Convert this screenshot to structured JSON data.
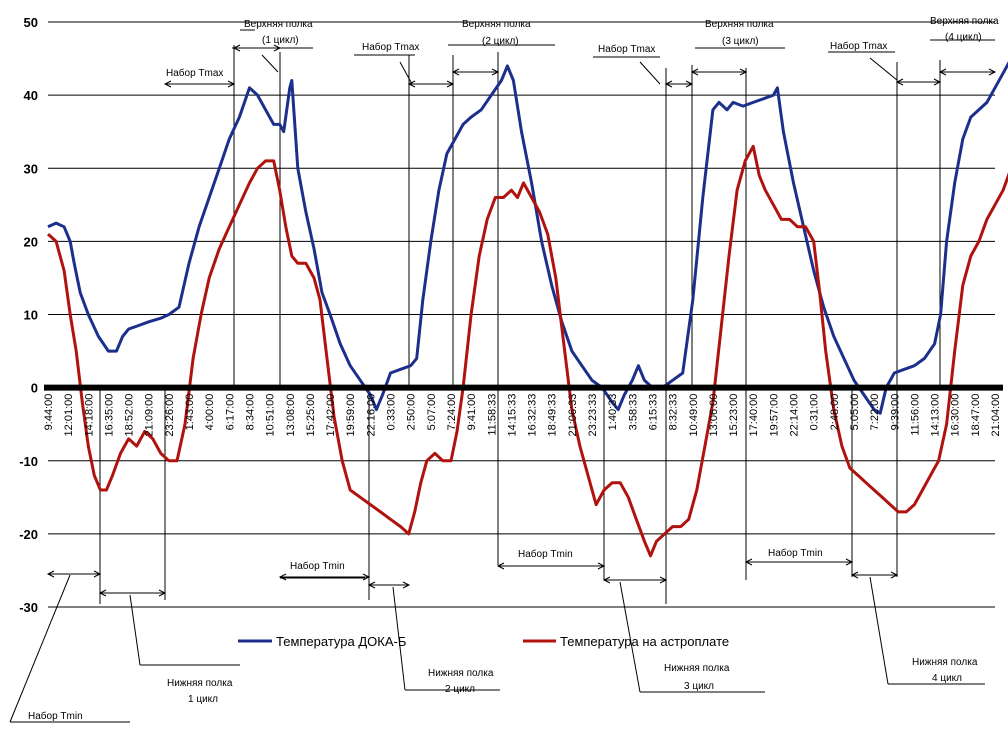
{
  "chart_data": {
    "type": "line",
    "title": "",
    "xlabel": "",
    "ylabel": "",
    "ylim": [
      -30,
      50
    ],
    "yticks": [
      50,
      40,
      30,
      20,
      10,
      0,
      -10,
      -20,
      -30
    ],
    "grid": true,
    "legend_position": "bottom",
    "categories": [
      "9:44:00",
      "12:01:00",
      "14:18:00",
      "16:35:00",
      "18:52:00",
      "21:09:00",
      "23:26:00",
      "1:43:00",
      "4:00:00",
      "6:17:00",
      "8:34:00",
      "10:51:00",
      "13:08:00",
      "15:25:00",
      "17:42:00",
      "19:59:00",
      "22:16:00",
      "0:33:00",
      "2:50:00",
      "5:07:00",
      "7:24:00",
      "9:41:00",
      "11:58:33",
      "14:15:33",
      "16:32:33",
      "18:49:33",
      "21:06:33",
      "23:23:33",
      "1:40:33",
      "3:58:33",
      "6:15:33",
      "8:32:33",
      "10:49:00",
      "13:06:00",
      "15:23:00",
      "17:40:00",
      "19:57:00",
      "22:14:00",
      "0:31:00",
      "2:48:00",
      "5:05:00",
      "7:22:00",
      "9:39:00",
      "11:56:00",
      "14:13:00",
      "16:30:00",
      "18:47:00",
      "21:04:00"
    ],
    "series": [
      {
        "name": "Температура ДОКА-Б",
        "color": "#1c2f8c",
        "points": [
          [
            0,
            22
          ],
          [
            0.4,
            22.5
          ],
          [
            0.8,
            22
          ],
          [
            1.1,
            20
          ],
          [
            1.3,
            17
          ],
          [
            1.6,
            13
          ],
          [
            2,
            10
          ],
          [
            2.5,
            7
          ],
          [
            3,
            5
          ],
          [
            3.4,
            5
          ],
          [
            3.7,
            7
          ],
          [
            4,
            8
          ],
          [
            4.5,
            8.5
          ],
          [
            5,
            9
          ],
          [
            5.6,
            9.5
          ],
          [
            6,
            10
          ],
          [
            6.5,
            11
          ],
          [
            7,
            17
          ],
          [
            7.5,
            22
          ],
          [
            8,
            26
          ],
          [
            8.5,
            30
          ],
          [
            9,
            34
          ],
          [
            9.5,
            37
          ],
          [
            10,
            41
          ],
          [
            10.4,
            40
          ],
          [
            10.8,
            38
          ],
          [
            11.2,
            36
          ],
          [
            11.5,
            36
          ],
          [
            11.7,
            35
          ],
          [
            12,
            41
          ],
          [
            12.1,
            42
          ],
          [
            12.4,
            30
          ],
          [
            12.8,
            24
          ],
          [
            13.2,
            19
          ],
          [
            13.6,
            13
          ],
          [
            14,
            10
          ],
          [
            14.5,
            6
          ],
          [
            15,
            3
          ],
          [
            15.5,
            1
          ],
          [
            16,
            -1
          ],
          [
            16.3,
            -3
          ],
          [
            16.6,
            -1
          ],
          [
            17,
            2
          ],
          [
            17.5,
            2.5
          ],
          [
            18,
            3
          ],
          [
            18.3,
            4
          ],
          [
            18.6,
            12
          ],
          [
            19,
            20
          ],
          [
            19.4,
            27
          ],
          [
            19.8,
            32
          ],
          [
            20.2,
            34
          ],
          [
            20.6,
            36
          ],
          [
            21,
            37
          ],
          [
            21.5,
            38
          ],
          [
            22,
            40
          ],
          [
            22.5,
            42
          ],
          [
            22.8,
            44
          ],
          [
            23.1,
            42
          ],
          [
            23.5,
            35
          ],
          [
            24,
            28
          ],
          [
            24.5,
            20
          ],
          [
            25,
            14
          ],
          [
            25.5,
            9
          ],
          [
            26,
            5
          ],
          [
            26.5,
            3
          ],
          [
            27,
            1
          ],
          [
            27.5,
            0
          ],
          [
            28,
            -2
          ],
          [
            28.3,
            -3
          ],
          [
            28.6,
            -1
          ],
          [
            29,
            1
          ],
          [
            29.3,
            3
          ],
          [
            29.6,
            1
          ],
          [
            30,
            0
          ],
          [
            30.5,
            0
          ],
          [
            31,
            1
          ],
          [
            31.5,
            2
          ],
          [
            32,
            12
          ],
          [
            32.5,
            26
          ],
          [
            33,
            38
          ],
          [
            33.3,
            39
          ],
          [
            33.7,
            38
          ],
          [
            34,
            39
          ],
          [
            34.5,
            38.5
          ],
          [
            35,
            39
          ],
          [
            35.5,
            39.5
          ],
          [
            36,
            40
          ],
          [
            36.2,
            41
          ],
          [
            36.5,
            35
          ],
          [
            37,
            28
          ],
          [
            37.5,
            22
          ],
          [
            38,
            16
          ],
          [
            38.5,
            11
          ],
          [
            39,
            7
          ],
          [
            39.5,
            4
          ],
          [
            40,
            1
          ],
          [
            40.5,
            -1
          ],
          [
            41,
            -3
          ],
          [
            41.3,
            -3.5
          ],
          [
            41.6,
            0
          ],
          [
            42,
            2
          ],
          [
            42.5,
            2.5
          ],
          [
            43,
            3
          ],
          [
            43.5,
            4
          ],
          [
            44,
            6
          ],
          [
            44.3,
            10
          ],
          [
            44.6,
            20
          ],
          [
            45,
            28
          ],
          [
            45.4,
            34
          ],
          [
            45.8,
            37
          ],
          [
            46.2,
            38
          ],
          [
            46.6,
            39
          ],
          [
            47,
            41
          ],
          [
            47.4,
            43
          ],
          [
            47.8,
            45
          ],
          [
            48.2,
            45
          ],
          [
            48.5,
            44.5
          ]
        ]
      },
      {
        "name": "Температура на астроплате",
        "color": "#b0120e",
        "points": [
          [
            0,
            21
          ],
          [
            0.4,
            20
          ],
          [
            0.8,
            16
          ],
          [
            1.1,
            10
          ],
          [
            1.4,
            5
          ],
          [
            1.7,
            -2
          ],
          [
            2,
            -8
          ],
          [
            2.3,
            -12
          ],
          [
            2.6,
            -14
          ],
          [
            2.9,
            -14
          ],
          [
            3.2,
            -12
          ],
          [
            3.6,
            -9
          ],
          [
            4,
            -7
          ],
          [
            4.4,
            -8
          ],
          [
            4.8,
            -6
          ],
          [
            5.2,
            -7
          ],
          [
            5.6,
            -9
          ],
          [
            6,
            -10
          ],
          [
            6.4,
            -10
          ],
          [
            6.8,
            -5
          ],
          [
            7.2,
            4
          ],
          [
            7.6,
            10
          ],
          [
            8,
            15
          ],
          [
            8.5,
            19
          ],
          [
            9,
            22
          ],
          [
            9.5,
            25
          ],
          [
            10,
            28
          ],
          [
            10.4,
            30
          ],
          [
            10.8,
            31
          ],
          [
            11.2,
            31
          ],
          [
            11.5,
            27
          ],
          [
            11.8,
            22
          ],
          [
            12.1,
            18
          ],
          [
            12.4,
            17
          ],
          [
            12.8,
            17
          ],
          [
            13.2,
            15
          ],
          [
            13.5,
            12
          ],
          [
            13.8,
            5
          ],
          [
            14.2,
            -4
          ],
          [
            14.6,
            -10
          ],
          [
            15,
            -14
          ],
          [
            15.5,
            -15
          ],
          [
            16,
            -16
          ],
          [
            16.5,
            -17
          ],
          [
            17,
            -18
          ],
          [
            17.5,
            -19
          ],
          [
            17.9,
            -20
          ],
          [
            18.2,
            -17
          ],
          [
            18.5,
            -13
          ],
          [
            18.8,
            -10
          ],
          [
            19.2,
            -9
          ],
          [
            19.6,
            -10
          ],
          [
            20,
            -10
          ],
          [
            20.3,
            -6
          ],
          [
            20.6,
            0
          ],
          [
            21,
            10
          ],
          [
            21.4,
            18
          ],
          [
            21.8,
            23
          ],
          [
            22.2,
            26
          ],
          [
            22.6,
            26
          ],
          [
            23,
            27
          ],
          [
            23.3,
            26
          ],
          [
            23.6,
            28
          ],
          [
            24,
            26
          ],
          [
            24.4,
            24
          ],
          [
            24.8,
            21
          ],
          [
            25.2,
            15
          ],
          [
            25.6,
            6
          ],
          [
            26,
            -3
          ],
          [
            26.4,
            -8
          ],
          [
            26.8,
            -12
          ],
          [
            27.2,
            -16
          ],
          [
            27.6,
            -14
          ],
          [
            28,
            -13
          ],
          [
            28.4,
            -13
          ],
          [
            28.8,
            -15
          ],
          [
            29.2,
            -18
          ],
          [
            29.6,
            -21
          ],
          [
            29.9,
            -23
          ],
          [
            30.2,
            -21
          ],
          [
            30.6,
            -20
          ],
          [
            31,
            -19
          ],
          [
            31.4,
            -19
          ],
          [
            31.8,
            -18
          ],
          [
            32.2,
            -14
          ],
          [
            32.6,
            -8
          ],
          [
            33,
            -2
          ],
          [
            33.4,
            8
          ],
          [
            33.8,
            18
          ],
          [
            34.2,
            27
          ],
          [
            34.6,
            31
          ],
          [
            35,
            33
          ],
          [
            35.3,
            29
          ],
          [
            35.6,
            27
          ],
          [
            36,
            25
          ],
          [
            36.4,
            23
          ],
          [
            36.8,
            23
          ],
          [
            37.2,
            22
          ],
          [
            37.6,
            22
          ],
          [
            38,
            20
          ],
          [
            38.3,
            13
          ],
          [
            38.6,
            5
          ],
          [
            39,
            -3
          ],
          [
            39.4,
            -8
          ],
          [
            39.8,
            -11
          ],
          [
            40.2,
            -12
          ],
          [
            40.6,
            -13
          ],
          [
            41,
            -14
          ],
          [
            41.4,
            -15
          ],
          [
            41.8,
            -16
          ],
          [
            42.2,
            -17
          ],
          [
            42.6,
            -17
          ],
          [
            43,
            -16
          ],
          [
            43.4,
            -14
          ],
          [
            43.8,
            -12
          ],
          [
            44.2,
            -10
          ],
          [
            44.6,
            -5
          ],
          [
            45,
            5
          ],
          [
            45.4,
            14
          ],
          [
            45.8,
            18
          ],
          [
            46.2,
            20
          ],
          [
            46.6,
            23
          ],
          [
            47,
            25
          ],
          [
            47.4,
            27
          ],
          [
            47.8,
            30
          ],
          [
            48.2,
            33
          ],
          [
            48.5,
            36
          ],
          [
            48.7,
            36
          ]
        ]
      }
    ],
    "annotations": {
      "upper_shelf_1": "Верхняя полка",
      "upper_shelf_1_cycle": "(1 цикл)",
      "upper_shelf_2": "Верхняя полка",
      "upper_shelf_2_cycle": "(2 цикл)",
      "upper_shelf_3": "Верхняя полка",
      "upper_shelf_3_cycle": "(3 цикл)",
      "upper_shelf_4": "Верхняя полка",
      "upper_shelf_4_cycle": "(4 цикл)",
      "gain_tmax_1": "Набор Tmax",
      "gain_tmax_2": "Набор Tmax",
      "gain_tmax_3": "Набор Tmax",
      "gain_tmax_4": "Набор Tmax",
      "gain_tmin_1": "Набор Tmin",
      "gain_tmin_2": "Набор Tmin",
      "gain_tmin_3": "Набор Tmin",
      "gain_tmin_4": "Набор Tmin",
      "lower_shelf_1": "Нижняя полка",
      "lower_shelf_1_cycle": "1 цикл",
      "lower_shelf_2": "Нижняя полка",
      "lower_shelf_2_cycle": "2 цикл",
      "lower_shelf_3": "Нижняя полка",
      "lower_shelf_3_cycle": "3 цикл",
      "lower_shelf_4": "Нижняя полка",
      "lower_shelf_4_cycle": "4 цикл"
    }
  }
}
